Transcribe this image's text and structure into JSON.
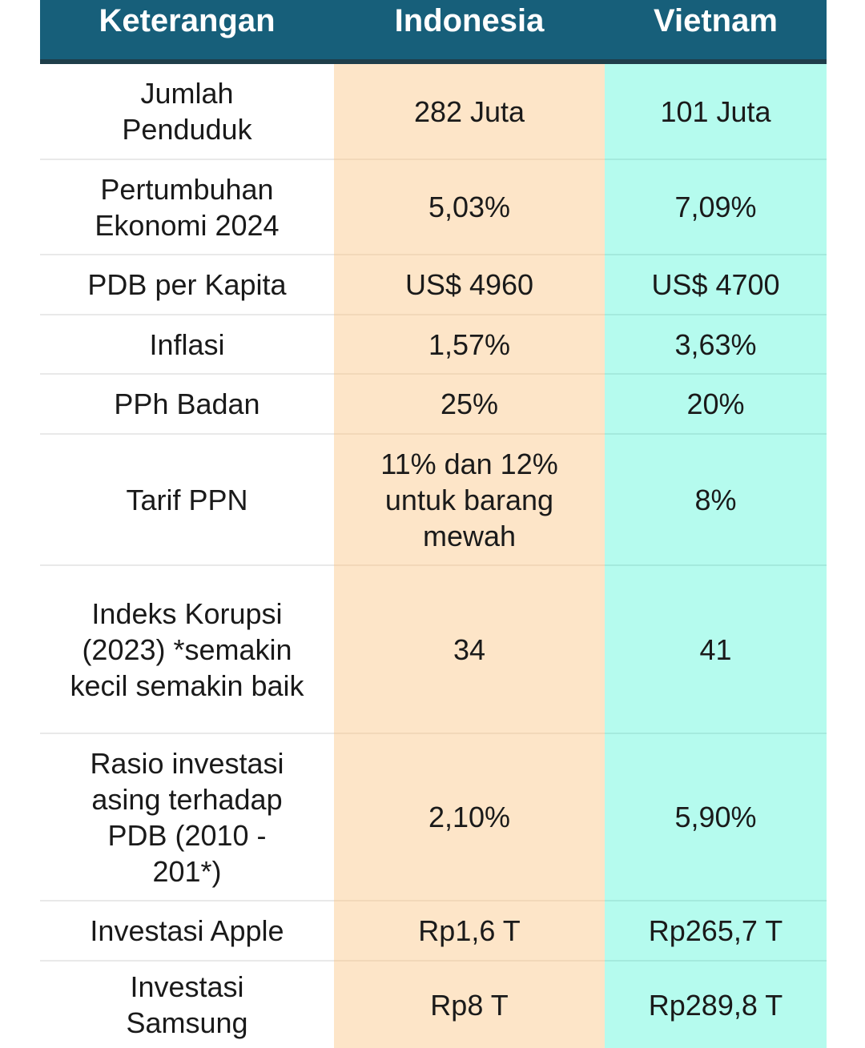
{
  "table": {
    "headers": [
      "Keterangan",
      "Indonesia",
      "Vietnam"
    ],
    "rows": [
      {
        "label": "Jumlah Penduduk",
        "indonesia": "282 Juta",
        "vietnam": "101 Juta"
      },
      {
        "label": "Pertumbuhan Ekonomi 2024",
        "indonesia": "5,03%",
        "vietnam": "7,09%"
      },
      {
        "label": "PDB per Kapita",
        "indonesia": "US$ 4960",
        "vietnam": "US$ 4700"
      },
      {
        "label": "Inflasi",
        "indonesia": "1,57%",
        "vietnam": "3,63%"
      },
      {
        "label": "PPh Badan",
        "indonesia": "25%",
        "vietnam": "20%"
      },
      {
        "label": "Tarif PPN",
        "indonesia": "11% dan 12% untuk barang mewah",
        "vietnam": "8%"
      },
      {
        "label": "Indeks Korupsi (2023) *semakin kecil semakin baik",
        "indonesia": "34",
        "vietnam": "41"
      },
      {
        "label": "Rasio investasi asing terhadap PDB (2010 - 201*)",
        "indonesia": "2,10%",
        "vietnam": "5,90%"
      },
      {
        "label": "Investasi Apple",
        "indonesia": "Rp1,6 T",
        "vietnam": "Rp265,7 T"
      },
      {
        "label": "Investasi Samsung",
        "indonesia": "Rp8 T",
        "vietnam": "Rp289,8 T"
      }
    ]
  },
  "colors": {
    "header_bg": "#175f7a",
    "indonesia_bg": "#fde5c8",
    "vietnam_bg": "#b5fbee"
  }
}
